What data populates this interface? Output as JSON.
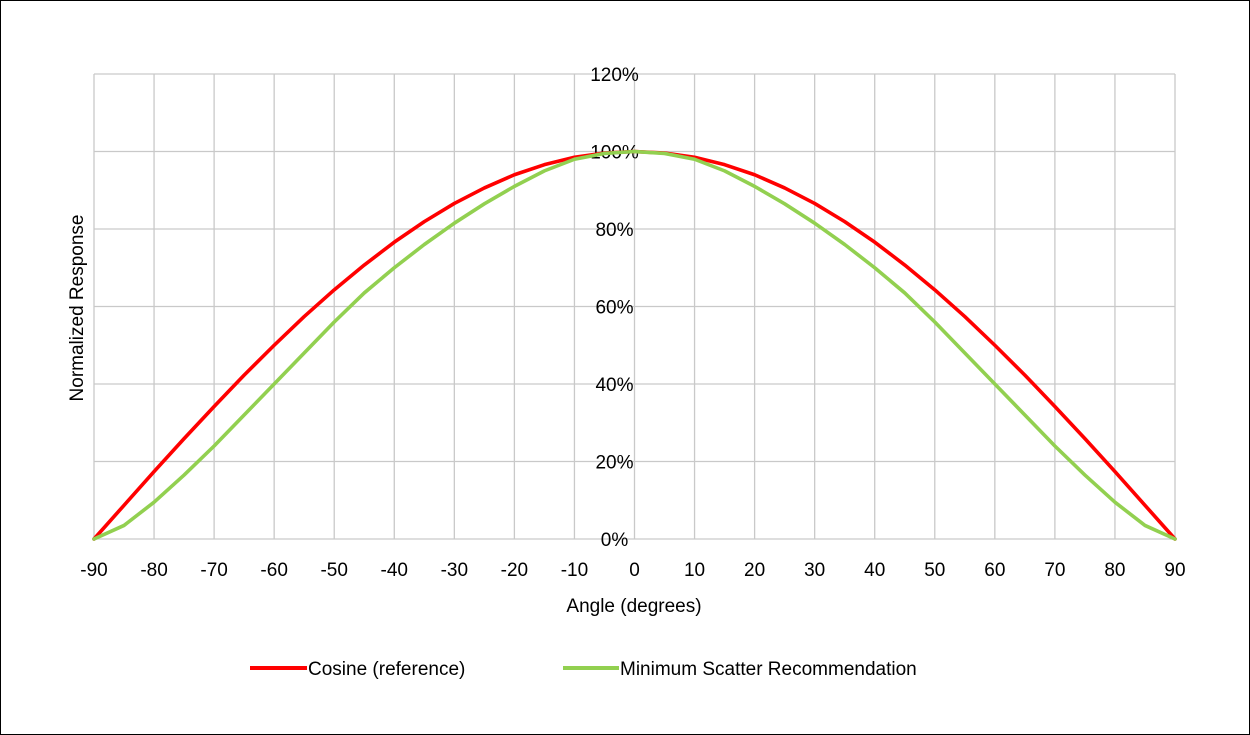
{
  "chart_data": {
    "type": "line",
    "title": "",
    "xlabel": "Angle (degrees)",
    "ylabel": "Normalized Response",
    "xlim": [
      -90,
      90
    ],
    "ylim": [
      0,
      1.2
    ],
    "x_ticks": [
      "-90",
      "-80",
      "-70",
      "-60",
      "-50",
      "-40",
      "-30",
      "-20",
      "-10",
      "0",
      "10",
      "20",
      "30",
      "40",
      "50",
      "60",
      "70",
      "80",
      "90"
    ],
    "y_ticks": [
      "0%",
      "20%",
      "40%",
      "60%",
      "80%",
      "100%",
      "120%"
    ],
    "grid": true,
    "legend_position": "bottom",
    "x": [
      -90,
      -85,
      -80,
      -75,
      -70,
      -65,
      -60,
      -55,
      -50,
      -45,
      -40,
      -35,
      -30,
      -25,
      -20,
      -15,
      -10,
      -5,
      0,
      5,
      10,
      15,
      20,
      25,
      30,
      35,
      40,
      45,
      50,
      55,
      60,
      65,
      70,
      75,
      80,
      85,
      90
    ],
    "series": [
      {
        "name": "Cosine (reference)",
        "color": "#ff0000",
        "values": [
          0.0,
          0.087,
          0.174,
          0.259,
          0.342,
          0.423,
          0.5,
          0.574,
          0.643,
          0.707,
          0.766,
          0.819,
          0.866,
          0.906,
          0.94,
          0.966,
          0.985,
          0.996,
          1.0,
          0.996,
          0.985,
          0.966,
          0.94,
          0.906,
          0.866,
          0.819,
          0.766,
          0.707,
          0.643,
          0.574,
          0.5,
          0.423,
          0.342,
          0.259,
          0.174,
          0.087,
          0.0
        ]
      },
      {
        "name": "Minimum Scatter Recommendation",
        "color": "#92d050",
        "values": [
          0.0,
          0.035,
          0.095,
          0.165,
          0.24,
          0.32,
          0.4,
          0.48,
          0.56,
          0.635,
          0.7,
          0.76,
          0.815,
          0.865,
          0.91,
          0.95,
          0.98,
          0.995,
          1.0,
          0.995,
          0.98,
          0.95,
          0.91,
          0.865,
          0.815,
          0.76,
          0.7,
          0.635,
          0.56,
          0.48,
          0.4,
          0.32,
          0.24,
          0.165,
          0.095,
          0.035,
          0.0
        ]
      }
    ]
  }
}
